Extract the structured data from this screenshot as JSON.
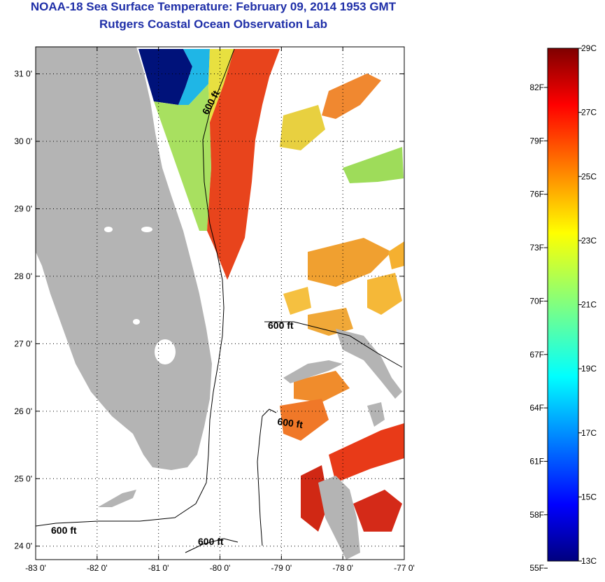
{
  "title": "NOAA-18 Sea Surface Temperature:  February 09, 2014 1953 GMT",
  "subtitle": "Rutgers Coastal Ocean Observation Lab",
  "map": {
    "lon_range": [
      -83,
      -77
    ],
    "lat_range": [
      23.8,
      31.4
    ],
    "lon_ticks": [
      -83,
      -82,
      -81,
      -80,
      -79,
      -78,
      -77
    ],
    "lon_tick_labels": [
      "-83 0'",
      "-82 0'",
      "-81 0'",
      "-80 0'",
      "-79 0'",
      "-78 0'",
      "-77 0'"
    ],
    "lat_ticks": [
      24,
      25,
      26,
      27,
      28,
      29,
      30,
      31
    ],
    "lat_tick_labels": [
      "24 0'",
      "25 0'",
      "26 0'",
      "27 0'",
      "28 0'",
      "29 0'",
      "30 0'",
      "31 0'"
    ],
    "grid": true,
    "land_color": "#b4b4b4",
    "contour_labels": [
      "600 ft",
      "600 ft",
      "600 ft",
      "600 ft",
      "600 ft"
    ]
  },
  "colorbar": {
    "celsius_labels": [
      "29C",
      "27C",
      "25C",
      "23C",
      "21C",
      "19C",
      "17C",
      "15C",
      "13C"
    ],
    "celsius_values": [
      29,
      27,
      25,
      23,
      21,
      19,
      17,
      15,
      13
    ],
    "fahrenheit_labels": [
      "82F",
      "79F",
      "76F",
      "73F",
      "70F",
      "67F",
      "64F",
      "61F",
      "58F",
      "55F"
    ],
    "fahrenheit_values": [
      82,
      79,
      76,
      73,
      70,
      67,
      64,
      61,
      58,
      55
    ],
    "range_c": [
      13,
      29
    ]
  }
}
